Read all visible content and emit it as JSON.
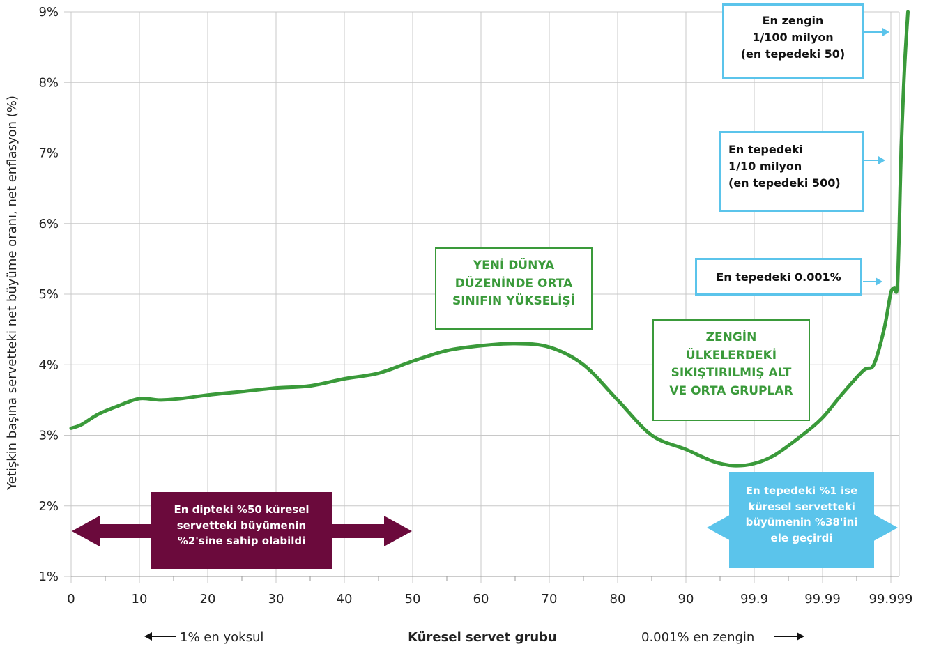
{
  "chart_data": {
    "type": "line",
    "ylabel": "Yetişkin başına servetteki net büyüme oranı, net enflasyon (%)",
    "xlabel": "Küresel servet grubu",
    "xlabel_left": "1% en yoksul",
    "xlabel_right": "0.001% en zengin",
    "y_ticks": [
      "1%",
      "2%",
      "3%",
      "4%",
      "5%",
      "6%",
      "7%",
      "8%",
      "9%"
    ],
    "ylim": [
      1,
      9
    ],
    "x_ticks": [
      "0",
      "10",
      "20",
      "30",
      "40",
      "50",
      "60",
      "70",
      "80",
      "90",
      "99.9",
      "99.99",
      "99.999"
    ],
    "grid": true,
    "series": [
      {
        "color": "#3a9a3a",
        "points": [
          [
            0,
            3.1
          ],
          [
            1.5,
            3.15
          ],
          [
            4,
            3.3
          ],
          [
            7,
            3.42
          ],
          [
            10,
            3.52
          ],
          [
            13,
            3.5
          ],
          [
            16,
            3.52
          ],
          [
            20,
            3.57
          ],
          [
            25,
            3.62
          ],
          [
            30,
            3.67
          ],
          [
            35,
            3.7
          ],
          [
            40,
            3.8
          ],
          [
            45,
            3.88
          ],
          [
            50,
            4.05
          ],
          [
            55,
            4.2
          ],
          [
            60,
            4.27
          ],
          [
            65,
            4.3
          ],
          [
            70,
            4.25
          ],
          [
            75,
            4.0
          ],
          [
            80,
            3.5
          ],
          [
            85,
            3.0
          ],
          [
            90,
            2.8
          ],
          [
            94,
            2.63
          ],
          [
            97,
            2.57
          ],
          [
            100,
            2.6
          ],
          [
            103,
            2.72
          ],
          [
            107,
            3.0
          ],
          [
            110,
            3.25
          ],
          [
            113,
            3.6
          ],
          [
            116,
            3.92
          ],
          [
            117.5,
            4.0
          ],
          [
            119,
            4.5
          ],
          [
            120,
            5.02
          ],
          [
            120.5,
            5.08
          ],
          [
            121,
            5.2
          ],
          [
            121.5,
            7.0
          ],
          [
            122,
            8.2
          ],
          [
            122.5,
            9.0
          ]
        ]
      }
    ],
    "annotations": {
      "middle_class": [
        "YENİ DÜNYA",
        "DÜZENİNDE ORTA",
        "SINIFIN YÜKSELİŞİ"
      ],
      "squeezed": [
        "ZENGİN",
        "ÜLKELERDEKİ",
        "SIKIŞTIRILMIŞ ALT",
        "VE ORTA GRUPLAR"
      ],
      "top_50": [
        "En zengin",
        "1/100 milyon",
        "(en tepedeki 50)"
      ],
      "top_500": [
        "En tepedeki",
        "1/10 milyon",
        "(en tepedeki 500)"
      ],
      "top_0001": [
        "En tepedeki 0.001%"
      ],
      "bottom_50": [
        "En dipteki %50 küresel",
        "servetteki büyümenin",
        "%2'sine sahip olabildi"
      ],
      "top_1": [
        "En tepedeki %1 ise",
        "küresel servetteki",
        "büyümenin %38'ini",
        "ele geçirdi"
      ]
    },
    "colors": {
      "line": "#3a9a3a",
      "grid": "#c8c8c8",
      "callout_blue": "#5bc4eb",
      "maroon": "#6b0a3c"
    }
  }
}
